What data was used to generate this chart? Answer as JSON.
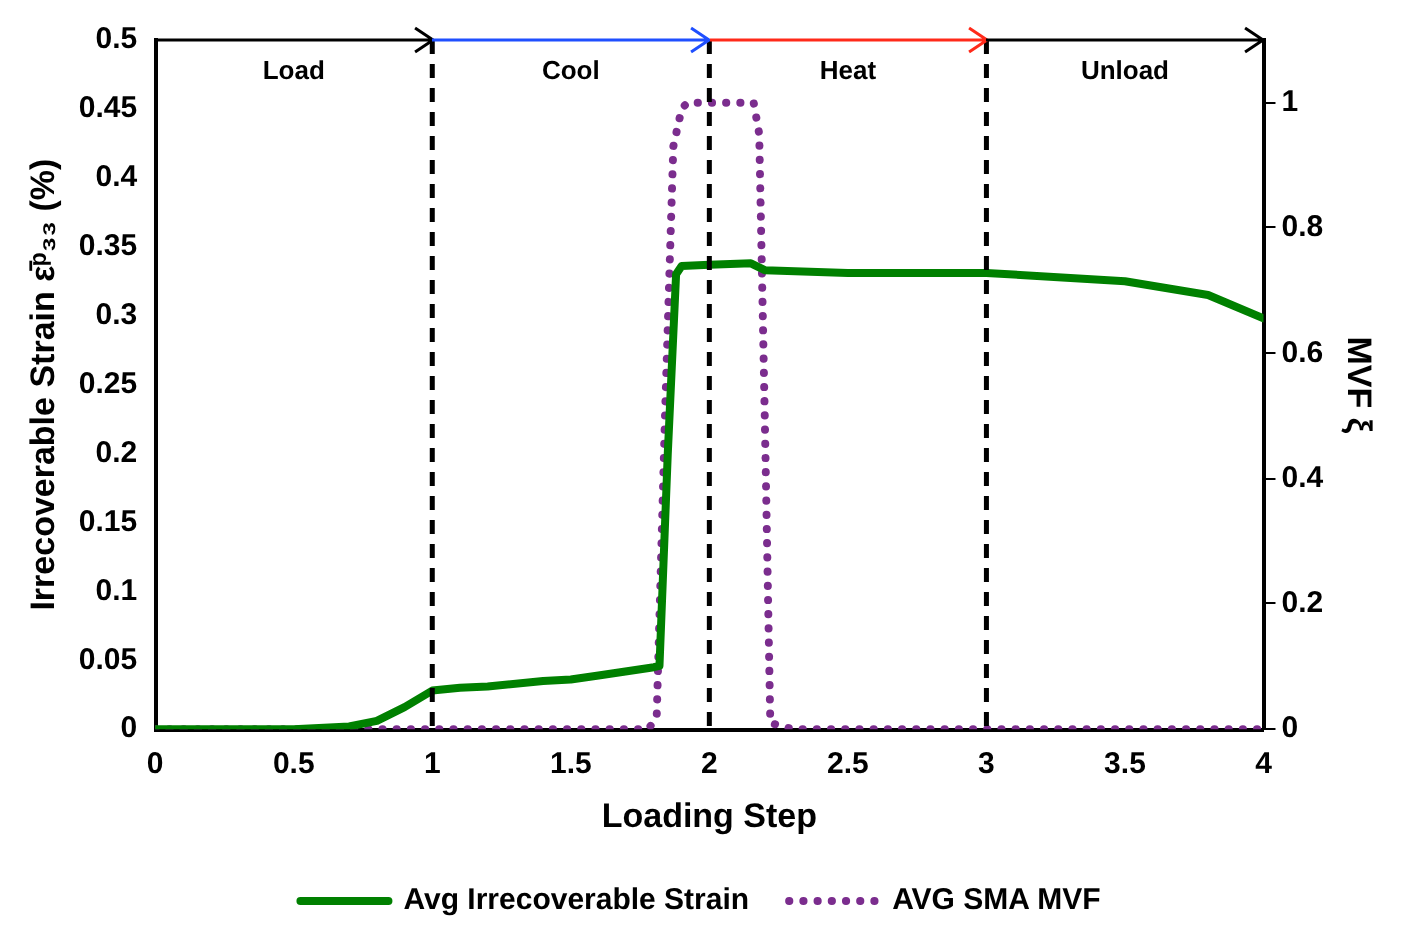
{
  "chart_data": {
    "type": "line",
    "xlabel": "Loading Step",
    "ylabel": "Irrecoverable Strain ε̄ᵖ₃₃ (%)",
    "y2label": "MVF ξ",
    "xlim": [
      0,
      4
    ],
    "xticks": [
      0,
      0.5,
      1,
      1.5,
      2,
      2.5,
      3,
      3.5,
      4
    ],
    "ylim": [
      0,
      0.5
    ],
    "yticks": [
      0,
      0.05,
      0.1,
      0.15,
      0.2,
      0.25,
      0.3,
      0.35,
      0.4,
      0.45,
      0.5
    ],
    "y2lim": [
      0,
      1.1
    ],
    "y2ticks": [
      0,
      0.2,
      0.4,
      0.6,
      0.8,
      1
    ],
    "series": [
      {
        "name": "Avg Irrecoverable Strain",
        "color": "#008000",
        "line_style": "solid",
        "x": [
          0,
          0.5,
          0.7,
          0.8,
          0.9,
          1.0,
          1.1,
          1.2,
          1.4,
          1.5,
          1.6,
          1.8,
          1.82,
          1.85,
          1.88,
          1.9,
          2.0,
          2.15,
          2.2,
          2.5,
          3.0,
          3.5,
          3.8,
          4.0
        ],
        "values": [
          0,
          0,
          0.002,
          0.006,
          0.016,
          0.028,
          0.03,
          0.031,
          0.035,
          0.036,
          0.039,
          0.045,
          0.046,
          0.2,
          0.33,
          0.336,
          0.337,
          0.338,
          0.333,
          0.331,
          0.331,
          0.325,
          0.315,
          0.298
        ]
      },
      {
        "name": "AVG SMA MVF",
        "color": "#7b2d8e",
        "line_style": "dotted",
        "axis": "y2",
        "x": [
          0,
          1.0,
          1.78,
          1.81,
          1.84,
          1.87,
          1.9,
          1.92,
          2.16,
          2.18,
          2.2,
          2.22,
          2.3,
          4.0
        ],
        "values": [
          0,
          0,
          0,
          0.02,
          0.5,
          0.93,
          0.99,
          1,
          1,
          0.95,
          0.5,
          0.01,
          0,
          0
        ]
      }
    ],
    "ref_lines": [
      {
        "axis": "x",
        "value": 1,
        "color": "#000000",
        "line_style": "dashed"
      },
      {
        "axis": "x",
        "value": 2,
        "color": "#000000",
        "line_style": "dashed"
      },
      {
        "axis": "x",
        "value": 3,
        "color": "#000000",
        "line_style": "dashed"
      }
    ],
    "annotations": [
      "Load",
      "Cool",
      "Heat",
      "Unload"
    ],
    "grid": false,
    "legend": "bottom",
    "marker": "none"
  }
}
